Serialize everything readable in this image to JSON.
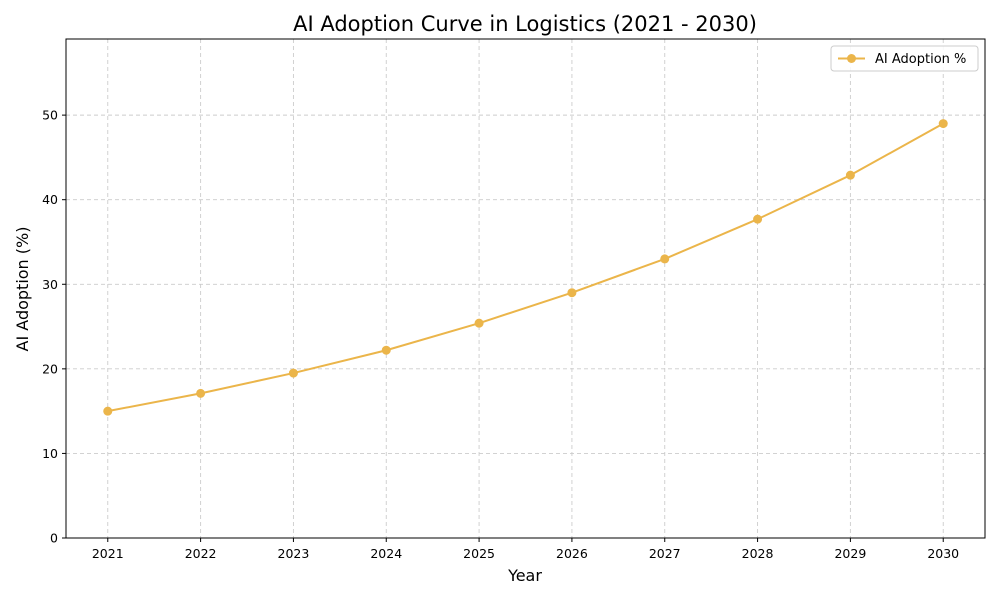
{
  "chart_data": {
    "type": "line",
    "title": "AI Adoption Curve in Logistics (2021 - 2030)",
    "xlabel": "Year",
    "ylabel": "AI Adoption (%)",
    "x": [
      2021,
      2022,
      2023,
      2024,
      2025,
      2026,
      2027,
      2028,
      2029,
      2030
    ],
    "series": [
      {
        "name": "AI Adoption %",
        "values": [
          15.0,
          17.1,
          19.5,
          22.2,
          25.4,
          29.0,
          33.0,
          37.7,
          42.9,
          49.0
        ],
        "color": "#ebb54a",
        "marker": "circle"
      }
    ],
    "xlim": [
      2020.55,
      2030.45
    ],
    "ylim": [
      0,
      59
    ],
    "yticks": [
      0,
      10,
      20,
      30,
      40,
      50
    ],
    "xticks": [
      "2021",
      "2022",
      "2023",
      "2024",
      "2025",
      "2026",
      "2027",
      "2028",
      "2029",
      "2030"
    ],
    "grid": true,
    "legend_position": "top-right"
  }
}
